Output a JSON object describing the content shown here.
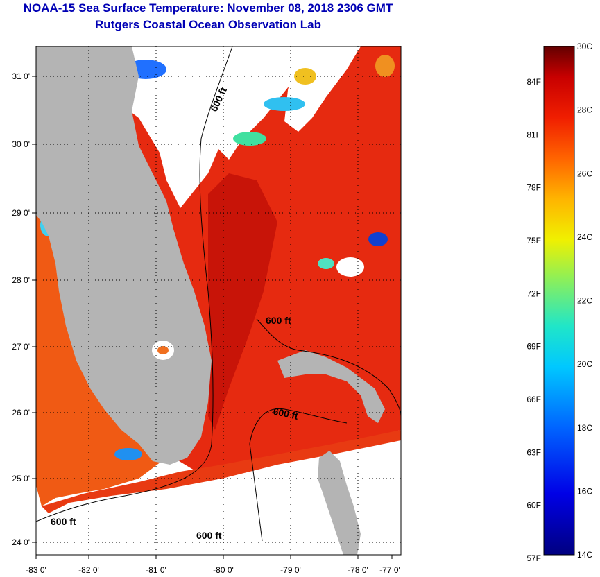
{
  "title_line1": "NOAA-15 Sea Surface Temperature:  November 08, 2018 2306 GMT",
  "title_line2": "Rutgers Coastal Ocean Observation Lab",
  "latitude_ticks": [
    "31 0'",
    "30 0'",
    "29 0'",
    "28 0'",
    "27 0'",
    "26 0'",
    "25 0'",
    "24 0'"
  ],
  "longitude_ticks": [
    "-83 0'",
    "-82 0'",
    "-81 0'",
    "-80 0'",
    "-79 0'",
    "-78 0'",
    "-77 0'"
  ],
  "contour_labels": [
    "600 ft",
    "600 ft",
    "600 ft",
    "600 ft",
    "600 ft"
  ],
  "colorbar": {
    "fahrenheit": [
      "84F",
      "81F",
      "78F",
      "75F",
      "72F",
      "69F",
      "66F",
      "63F",
      "60F",
      "57F"
    ],
    "celsius": [
      "30C",
      "28C",
      "26C",
      "24C",
      "22C",
      "20C",
      "18C",
      "16C",
      "14C"
    ],
    "min_c": 14,
    "max_c": 30
  },
  "colors": {
    "title": "#0000b4",
    "land": "#b4b4b4",
    "cloud": "#ffffff",
    "sst_warm": "#e62a10",
    "sst_hot": "#c81408",
    "sst_gulf": "#f05a14"
  }
}
